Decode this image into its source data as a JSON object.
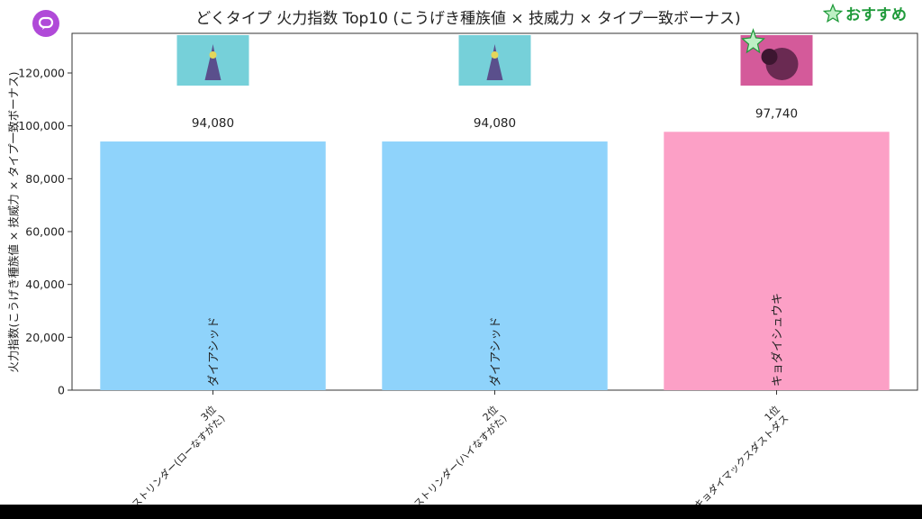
{
  "title": "どくタイプ 火力指数 Top10 (こうげき種族値 × 技威力 × タイプ一致ボーナス)",
  "badge": {
    "label": "おすすめ",
    "icon": "star-icon",
    "color": "#1f9a3a"
  },
  "logo": {
    "icon": "chat-bubble-icon",
    "color": "#b04ad8"
  },
  "chart_data": {
    "type": "bar",
    "title": "どくタイプ 火力指数 Top10 (こうげき種族値 × 技威力 × タイプ一致ボーナス)",
    "xlabel": "",
    "ylabel": "火力指数(こうげき種族値 × 技威力 × タイプ一致ボーナス)",
    "ylim": [
      0,
      135000
    ],
    "yticks": [
      0,
      20000,
      40000,
      60000,
      80000,
      100000,
      120000
    ],
    "grid": false,
    "categories": [
      [
        "3位",
        "ストリンダー(ローなすがた)"
      ],
      [
        "2位",
        "ストリンダー(ハイなすがた)"
      ],
      [
        "1位",
        "キョダイマックスダストダス"
      ]
    ],
    "values": [
      94080,
      94080,
      97740
    ],
    "value_labels": [
      "94,080",
      "94,080",
      "97,740"
    ],
    "moves": [
      "ダイアシッド",
      "ダイアシッド",
      "キョダイシュウキ"
    ],
    "colors": [
      "#8fd3fb",
      "#8fd3fb",
      "#fca0c6"
    ],
    "thumb_colors": [
      "#76d0d9",
      "#76d0d9",
      "#d45a9a"
    ],
    "recommended": [
      false,
      false,
      true
    ]
  }
}
